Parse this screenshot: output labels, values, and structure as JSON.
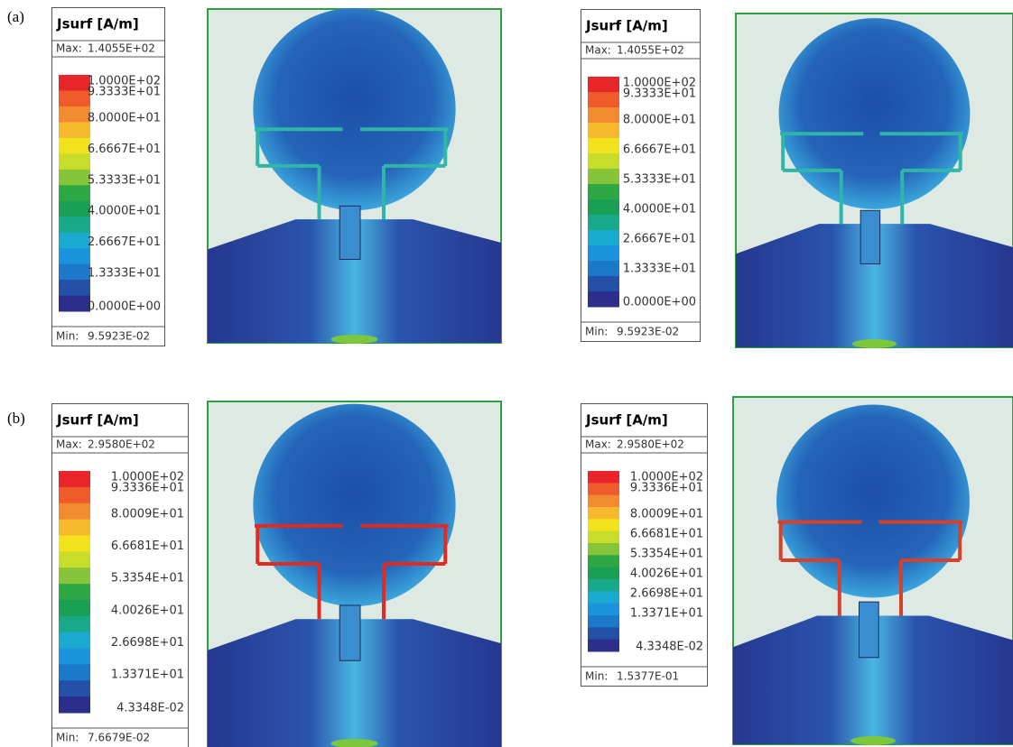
{
  "panel_labels": [
    "(a)",
    "(b)"
  ],
  "legends": [
    {
      "title": "Jsurf [A/m]",
      "max_label": "Max:",
      "max_value": "1.4055E+02",
      "ticks": [
        "1.0000E+02",
        "9.3333E+01",
        "8.0000E+01",
        "6.6667E+01",
        "5.3333E+01",
        "4.0000E+01",
        "2.6667E+01",
        "1.3333E+01",
        "0.0000E+00"
      ],
      "min_label": "Min:",
      "min_value": "9.5923E-02"
    },
    {
      "title": "Jsurf [A/m]",
      "max_label": "Max:",
      "max_value": "1.4055E+02",
      "ticks": [
        "1.0000E+02",
        "9.3333E+01",
        "8.0000E+01",
        "6.6667E+01",
        "5.3333E+01",
        "4.0000E+01",
        "2.6667E+01",
        "1.3333E+01",
        "0.0000E+00"
      ],
      "min_label": "Min:",
      "min_value": "9.5923E-02"
    },
    {
      "title": "Jsurf [A/m]",
      "max_label": "Max:",
      "max_value": "2.9580E+02",
      "ticks": [
        "1.0000E+02",
        "9.3336E+01",
        "8.0009E+01",
        "6.6681E+01",
        "5.3354E+01",
        "4.0026E+01",
        "2.6698E+01",
        "1.3371E+01",
        "4.3348E-02"
      ],
      "min_label": "Min:",
      "min_value": "7.6679E-02"
    },
    {
      "title": "Jsurf [A/m]",
      "max_label": "Max:",
      "max_value": "2.9580E+02",
      "ticks": [
        "1.0000E+02",
        "9.3336E+01",
        "8.0009E+01",
        "6.6681E+01",
        "5.3354E+01",
        "4.0026E+01",
        "2.6698E+01",
        "1.3371E+01",
        "4.3348E-02"
      ],
      "min_label": "Min:",
      "min_value": "1.5377E-01"
    }
  ]
}
